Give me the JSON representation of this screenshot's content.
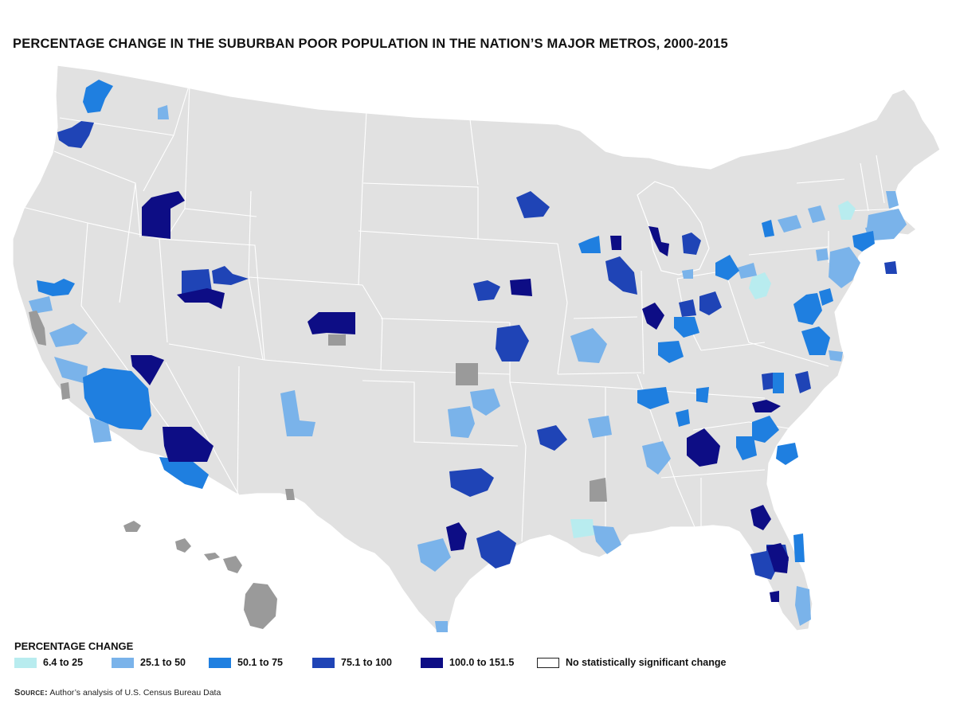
{
  "title": "PERCENTAGE CHANGE IN THE SUBURBAN POOR POPULATION IN THE NATION’S MAJOR METROS, 2000-2015",
  "legend": {
    "title": "PERCENTAGE CHANGE",
    "items": [
      {
        "id": "c1",
        "label": "6.4 to 25",
        "color": "#b8ecef"
      },
      {
        "id": "c2",
        "label": "25.1 to 50",
        "color": "#7ab3ea"
      },
      {
        "id": "c3",
        "label": "50.1 to 75",
        "color": "#1f7fe0"
      },
      {
        "id": "c4",
        "label": "75.1 to 100",
        "color": "#1f44b6"
      },
      {
        "id": "c5",
        "label": "100.0 to 151.5",
        "color": "#0d0d85"
      },
      {
        "id": "none",
        "label": "No statistically significant change",
        "color": "#ffffff"
      }
    ]
  },
  "colors": {
    "land": "#e1e1e1",
    "state_border": "#ffffff",
    "not_significant_metro": "#9a9a9a"
  },
  "source": {
    "label": "Source:",
    "text": " Author’s analysis of U.S. Census Bureau Data"
  }
}
